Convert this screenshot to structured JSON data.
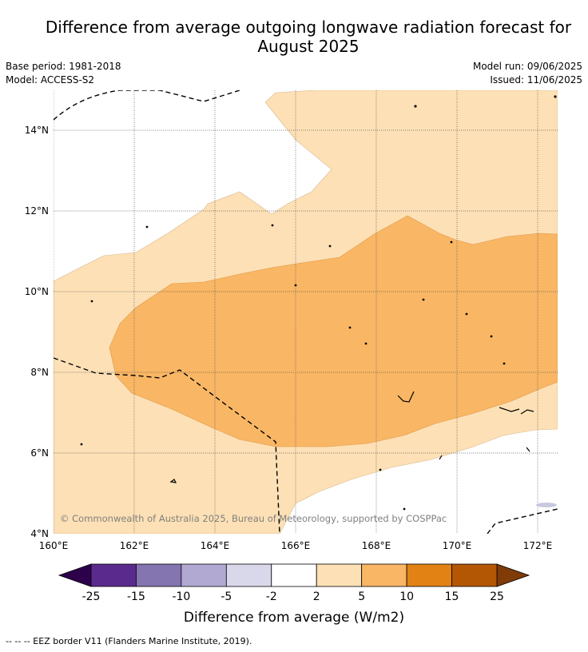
{
  "title_line1": "Difference from average outgoing longwave radiation forecast for",
  "title_line2": "August 2025",
  "base_period": "Base period: 1981-2018",
  "model": "Model: ACCESS-S2",
  "model_run": "Model run: 09/06/2025",
  "issued": "Issued: 11/06/2025",
  "copyright": "© Commonwealth of Australia 2025, Bureau of Meteorology, supported by COSPPac",
  "lat_ticks": [
    "14°N",
    "12°N",
    "10°N",
    "8°N",
    "6°N",
    "4°N"
  ],
  "lon_ticks": [
    "160°E",
    "162°E",
    "164°E",
    "166°E",
    "168°E",
    "170°E",
    "172°E"
  ],
  "colorbar": {
    "label": "Difference from average (W/m2)",
    "ticks": [
      "-25",
      "-15",
      "-10",
      "-5",
      "-2",
      "2",
      "5",
      "10",
      "15",
      "25"
    ],
    "colors": [
      "#5b2a8d",
      "#8474b0",
      "#b2a9d3",
      "#d8d8ea",
      "#ffffff",
      "#fde0b5",
      "#f9b664",
      "#e28214",
      "#b35705"
    ],
    "extend_low_color": "#2d004b",
    "extend_high_color": "#7f3b08"
  },
  "footnote": "-- -- -- EEZ border V11 (Flanders Marine Institute, 2019)."
}
